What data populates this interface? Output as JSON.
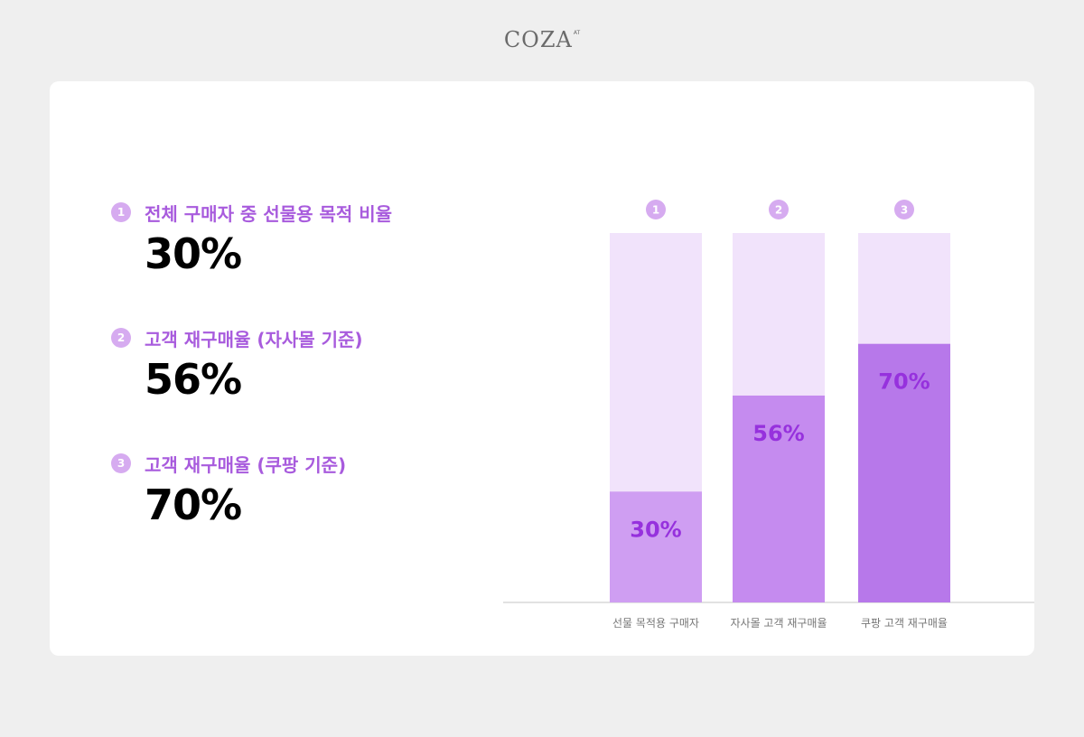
{
  "brand": {
    "name": "COZA",
    "mark": "AT"
  },
  "stats": [
    {
      "num": "1",
      "label": "전체 구매자 중 선물용 목적 비율",
      "value": "30%"
    },
    {
      "num": "2",
      "label": "고객 재구매율 (자사몰 기준)",
      "value": "56%"
    },
    {
      "num": "3",
      "label": "고객 재구매율 (쿠팡 기준)",
      "value": "70%"
    }
  ],
  "chart_data": {
    "type": "bar",
    "categories": [
      "선물 목적용 구매자",
      "자사몰 고객 재구매율",
      "쿠팡 고객 재구매율"
    ],
    "markers": [
      "1",
      "2",
      "3"
    ],
    "values": [
      30,
      56,
      70
    ],
    "value_labels": [
      "30%",
      "56%",
      "70%"
    ],
    "ylim": [
      0,
      100
    ],
    "grid": false,
    "colors": {
      "track": "#f1e3fb",
      "bars": [
        "#cf9ef2",
        "#c58bef",
        "#b778ea"
      ],
      "value_text": "#9631dd",
      "marker": "#d6abf0",
      "baseline": "#d8d8d8",
      "category_text": "#777777"
    }
  }
}
